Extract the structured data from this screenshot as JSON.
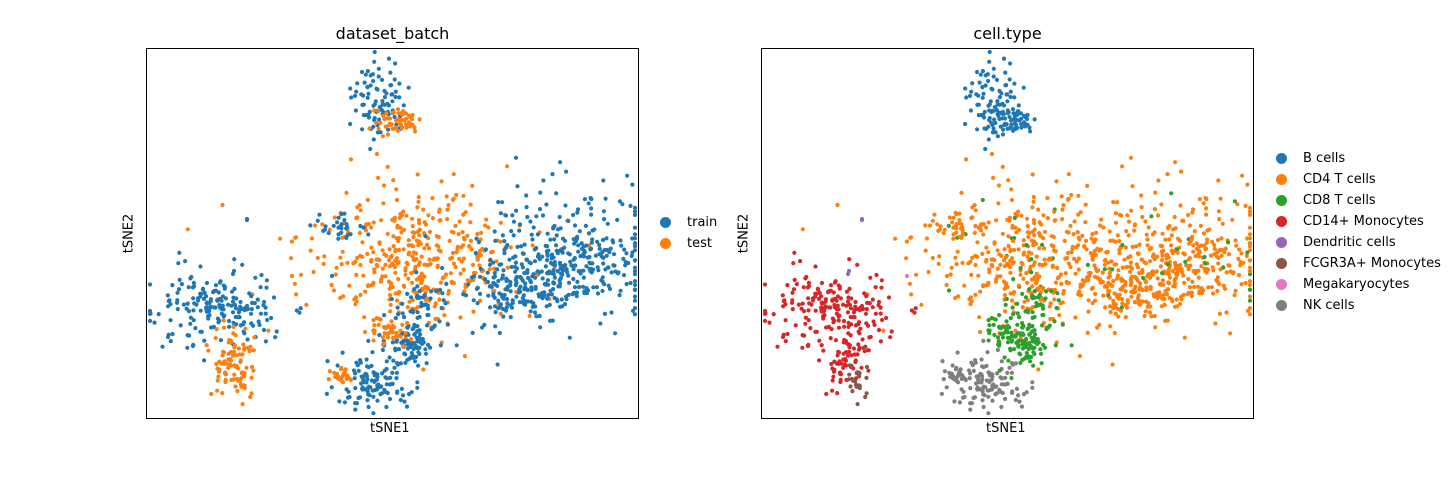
{
  "chart_data": [
    {
      "type": "scatter",
      "title": "dataset_batch",
      "xlabel": "tSNE1",
      "ylabel": "tSNE2",
      "grid": false,
      "legend": "outside-right",
      "legend_entries": [
        {
          "name": "train",
          "color": "#1f77b4"
        },
        {
          "name": "test",
          "color": "#ff7f0e"
        }
      ]
    },
    {
      "type": "scatter",
      "title": "cell.type",
      "xlabel": "tSNE1",
      "ylabel": "tSNE2",
      "grid": false,
      "legend": "outside-right",
      "legend_entries": [
        {
          "name": "B cells",
          "color": "#1f77b4"
        },
        {
          "name": "CD4 T cells",
          "color": "#ff7f0e"
        },
        {
          "name": "CD8 T cells",
          "color": "#2ca02c"
        },
        {
          "name": "CD14+ Monocytes",
          "color": "#d62728"
        },
        {
          "name": "Dendritic cells",
          "color": "#9467bd"
        },
        {
          "name": "FCGR3A+ Monocytes",
          "color": "#8c564b"
        },
        {
          "name": "Megakaryocytes",
          "color": "#e377c2"
        },
        {
          "name": "NK cells",
          "color": "#7f7f7f"
        }
      ]
    }
  ]
}
